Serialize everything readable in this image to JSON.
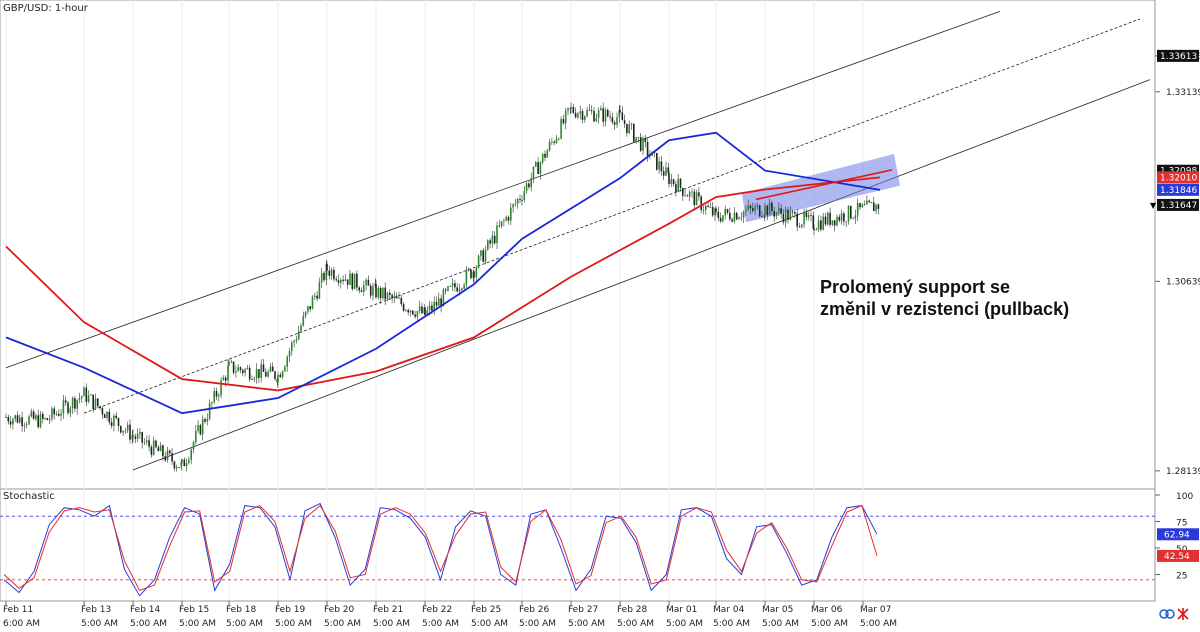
{
  "chart_data": [
    {
      "type": "candlestick",
      "title": "GBP/USD: 1-hour",
      "ylim": [
        1.279,
        1.3435
      ],
      "y_ticks": [
        "1.33613",
        "1.33139",
        "1.30639",
        "1.28139"
      ],
      "price_tags": [
        {
          "label": "1.33613",
          "value": 1.33613,
          "bg": "#111111"
        },
        {
          "label": "1.32098",
          "value": 1.32098,
          "bg": "#111111"
        },
        {
          "label": "1.32010",
          "value": 1.3201,
          "bg": "#e03030"
        },
        {
          "label": "1.31846",
          "value": 1.31846,
          "bg": "#2a3ad8"
        },
        {
          "label": "1.31647",
          "value": 1.31647,
          "bg": "#111111"
        }
      ],
      "last_price": 1.31647,
      "close_path": [
        [
          "Feb 11",
          1.2885
        ],
        [
          "Feb 12",
          1.288
        ],
        [
          "Feb 13",
          1.2915
        ],
        [
          "Feb 14",
          1.286
        ],
        [
          "Feb 15",
          1.282
        ],
        [
          "Feb 18",
          1.295
        ],
        [
          "Feb 19",
          1.294
        ],
        [
          "Feb 20",
          1.308
        ],
        [
          "Feb 21",
          1.305
        ],
        [
          "Feb 22",
          1.302
        ],
        [
          "Feb 25",
          1.308
        ],
        [
          "Feb 26",
          1.318
        ],
        [
          "Feb 27",
          1.329
        ],
        [
          "Feb 28",
          1.328
        ],
        [
          "Mar 01",
          1.32
        ],
        [
          "Mar 04",
          1.315
        ],
        [
          "Mar 05",
          1.316
        ],
        [
          "Mar 06",
          1.314
        ],
        [
          "Mar 07",
          1.3165
        ]
      ],
      "ma_blue": [
        [
          "Feb 11",
          1.299
        ],
        [
          "Feb 13",
          1.295
        ],
        [
          "Feb 15",
          1.289
        ],
        [
          "Feb 19",
          1.291
        ],
        [
          "Feb 21",
          1.2975
        ],
        [
          "Feb 25",
          1.306
        ],
        [
          "Feb 26",
          1.312
        ],
        [
          "Feb 28",
          1.32
        ],
        [
          "Mar 01",
          1.325
        ],
        [
          "Mar 04",
          1.326
        ],
        [
          "Mar 05",
          1.321
        ],
        [
          "Mar 07",
          1.31846
        ]
      ],
      "ma_red": [
        [
          "Feb 11",
          1.311
        ],
        [
          "Feb 13",
          1.301
        ],
        [
          "Feb 15",
          1.2935
        ],
        [
          "Feb 19",
          1.292
        ],
        [
          "Feb 21",
          1.2945
        ],
        [
          "Feb 25",
          1.299
        ],
        [
          "Feb 27",
          1.307
        ],
        [
          "Mar 01",
          1.314
        ],
        [
          "Mar 04",
          1.3175
        ],
        [
          "Mar 05",
          1.3185
        ],
        [
          "Mar 07",
          1.3201
        ]
      ],
      "channel": {
        "upper": [
          [
            "Feb 11",
            1.295
          ],
          [
            "Mar 05",
            1.342
          ]
        ],
        "middle": [
          [
            "Feb 13",
            1.289
          ],
          [
            "Mar 07",
            1.341
          ]
        ],
        "lower": [
          [
            "Feb 14",
            1.2815
          ],
          [
            "Mar 07",
            1.333
          ]
        ]
      },
      "resistance_zone": {
        "from": "Mar 04",
        "to": "Mar 07",
        "y_low": 1.316,
        "y_high": 1.322
      },
      "resistance_line": [
        [
          "Mar 04",
          1.3172
        ],
        [
          "Mar 07",
          1.3201
        ]
      ],
      "annotation": [
        "Prolomený support se",
        "změnil v rezistenci (pullback)"
      ],
      "colors": {
        "bull": "#2a8a2a",
        "bear": "#222222",
        "ma_blue": "#1a27d9",
        "ma_red": "#e01818",
        "zone": "#6f7ee8"
      }
    },
    {
      "type": "line",
      "title": "Stochastic",
      "ylim": [
        0,
        100
      ],
      "y_ticks": [
        "100",
        "75",
        "50",
        "25"
      ],
      "levels": [
        80,
        20
      ],
      "values_tags": [
        {
          "label": "62.94",
          "value": 62.94,
          "bg": "#2a3ad8"
        },
        {
          "label": "42.54",
          "value": 42.54,
          "bg": "#e03030"
        }
      ],
      "series": [
        {
          "color": "#2a3ad8",
          "values": [
            20,
            8,
            28,
            72,
            88,
            86,
            80,
            90,
            30,
            5,
            20,
            60,
            88,
            82,
            10,
            35,
            90,
            88,
            70,
            20,
            85,
            92,
            60,
            15,
            30,
            88,
            86,
            78,
            60,
            20,
            70,
            85,
            80,
            25,
            15,
            82,
            86,
            50,
            10,
            30,
            80,
            78,
            55,
            10,
            25,
            86,
            88,
            80,
            40,
            25,
            70,
            72,
            45,
            15,
            20,
            60,
            88,
            90,
            62.94
          ]
        },
        {
          "color": "#e03030",
          "values": [
            25,
            12,
            22,
            65,
            85,
            88,
            84,
            86,
            38,
            10,
            15,
            52,
            84,
            85,
            18,
            28,
            84,
            90,
            75,
            28,
            78,
            90,
            66,
            22,
            25,
            82,
            88,
            82,
            64,
            28,
            62,
            82,
            84,
            32,
            18,
            75,
            86,
            58,
            16,
            24,
            74,
            80,
            60,
            16,
            20,
            80,
            88,
            84,
            48,
            28,
            64,
            74,
            50,
            20,
            18,
            52,
            84,
            90,
            42.54
          ]
        }
      ]
    }
  ],
  "x_axis": {
    "dates": [
      "Feb 11",
      "Feb 13",
      "Feb 14",
      "Feb 15",
      "Feb 18",
      "Feb 19",
      "Feb 20",
      "Feb 21",
      "Feb 22",
      "Feb 25",
      "Feb 26",
      "Feb 27",
      "Feb 28",
      "Mar 01",
      "Mar 04",
      "Mar 05",
      "Mar 06",
      "Mar 07"
    ],
    "times": [
      "6:00 AM",
      "5:00 AM",
      "5:00 AM",
      "5:00 AM",
      "5:00 AM",
      "5:00 AM",
      "5:00 AM",
      "5:00 AM",
      "5:00 AM",
      "5:00 AM",
      "5:00 AM",
      "5:00 AM",
      "5:00 AM",
      "5:00 AM",
      "5:00 AM",
      "5:00 AM",
      "5:00 AM",
      "5:00 AM"
    ]
  },
  "icons": [
    "link-icon",
    "pin-icon"
  ]
}
